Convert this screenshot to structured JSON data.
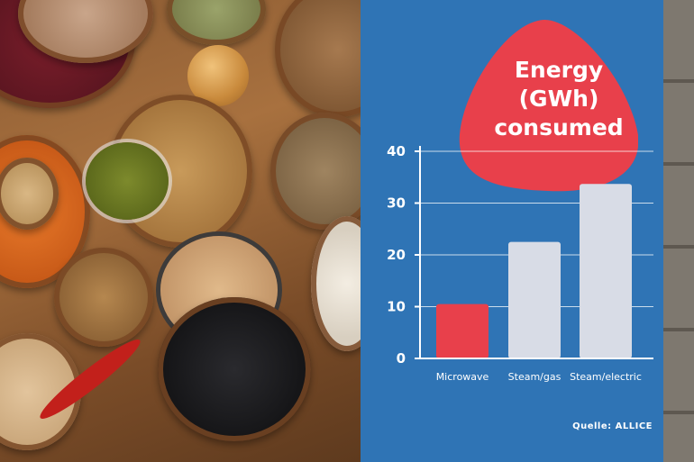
{
  "title": {
    "line1": "Energy",
    "line2": "(GWh)",
    "line3": "consumed"
  },
  "source": "Quelle: ALLICE",
  "colors": {
    "panel_bg": "#2f74b5",
    "highlight": "#e8404b",
    "bar_default": "#d8dce6",
    "axis": "#ffffff"
  },
  "chart_data": {
    "type": "bar",
    "categories": [
      "Microwave",
      "Steam/gas",
      "Steam/electric"
    ],
    "values": [
      10.5,
      22.5,
      33.7
    ],
    "highlight_index": 0,
    "ylim": [
      0,
      40
    ],
    "yticks": [
      0,
      10,
      20,
      30,
      40
    ],
    "title": "Energy (GWh) consumed",
    "xlabel": "",
    "ylabel": "",
    "grid": true
  }
}
